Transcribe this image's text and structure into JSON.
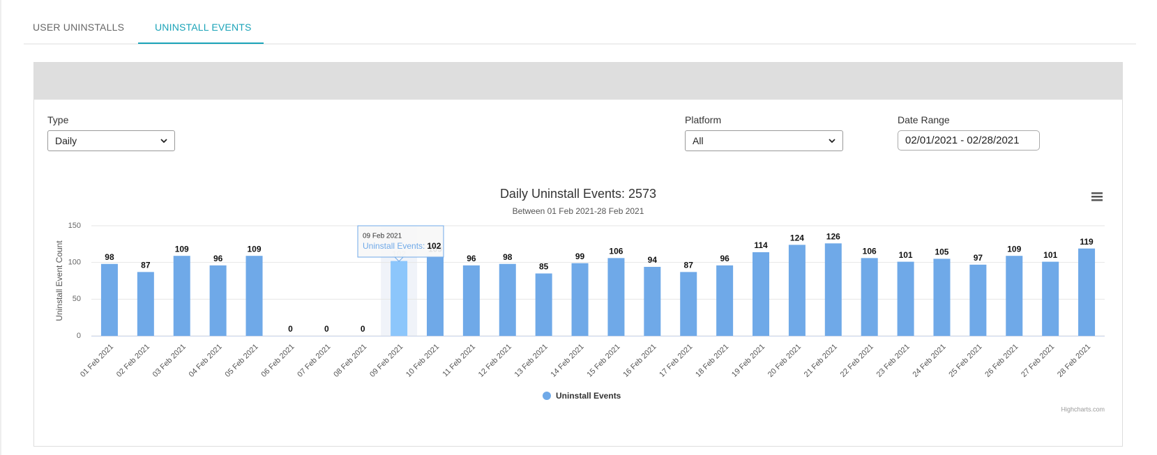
{
  "tabs": [
    "USER UNINSTALLS",
    "UNINSTALL EVENTS"
  ],
  "filters": {
    "type": {
      "label": "Type",
      "value": "Daily"
    },
    "platform": {
      "label": "Platform",
      "value": "All"
    },
    "date_range": {
      "label": "Date Range",
      "value": "02/01/2021 - 02/28/2021"
    }
  },
  "chart_data": {
    "type": "bar",
    "title": "Daily Uninstall Events: 2573",
    "subtitle": "Between 01 Feb 2021-28 Feb 2021",
    "y_label": "Uninstall Event Count",
    "categories": [
      "01 Feb 2021",
      "02 Feb 2021",
      "03 Feb 2021",
      "04 Feb 2021",
      "05 Feb 2021",
      "06 Feb 2021",
      "07 Feb 2021",
      "08 Feb 2021",
      "09 Feb 2021",
      "10 Feb 2021",
      "11 Feb 2021",
      "12 Feb 2021",
      "13 Feb 2021",
      "14 Feb 2021",
      "15 Feb 2021",
      "16 Feb 2021",
      "17 Feb 2021",
      "18 Feb 2021",
      "19 Feb 2021",
      "20 Feb 2021",
      "21 Feb 2021",
      "22 Feb 2021",
      "23 Feb 2021",
      "24 Feb 2021",
      "25 Feb 2021",
      "26 Feb 2021",
      "27 Feb 2021",
      "28 Feb 2021"
    ],
    "series": [
      {
        "name": "Uninstall Events",
        "color": "#6fa9e8",
        "values": [
          98,
          87,
          109,
          96,
          109,
          0,
          0,
          0,
          102,
          109,
          96,
          98,
          85,
          99,
          106,
          94,
          87,
          96,
          114,
          124,
          126,
          106,
          101,
          105,
          97,
          109,
          101,
          119
        ]
      }
    ],
    "ylim": [
      0,
      150
    ],
    "yticks": [
      0,
      50,
      100,
      150
    ],
    "grid": true,
    "legend": "bottom",
    "highlight_color": "#8cc6fb",
    "tooltip": {
      "index": 8,
      "label": "Uninstall Events:"
    },
    "credits": "Highcharts.com"
  }
}
